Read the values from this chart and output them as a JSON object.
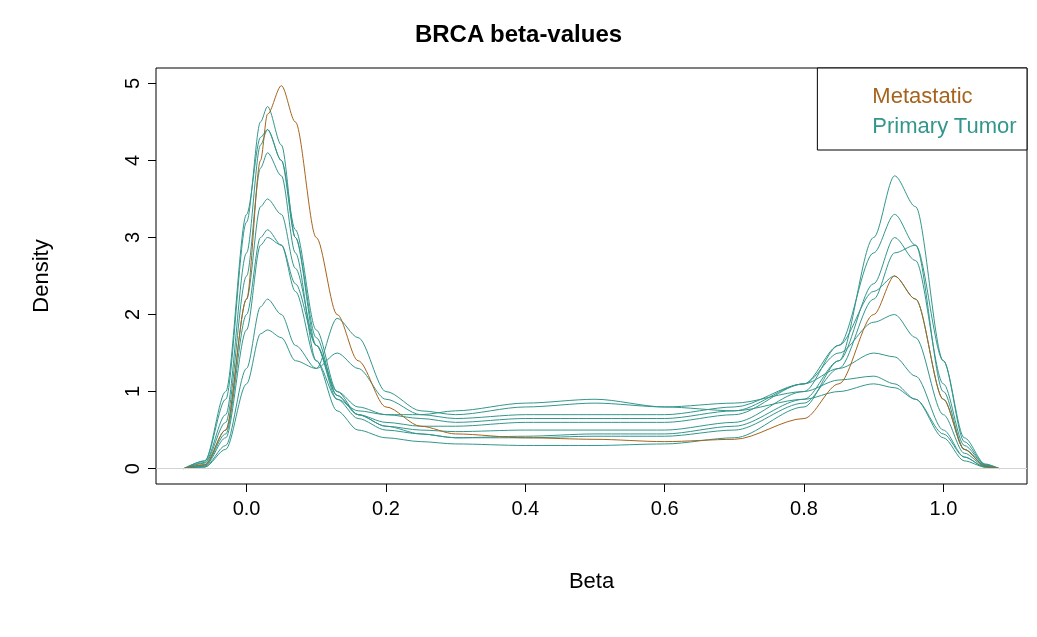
{
  "chart_data": {
    "type": "line",
    "title": "BRCA beta-values",
    "xlabel": "Beta",
    "ylabel": "Density",
    "xlim": [
      -0.13,
      1.12
    ],
    "xticks": [
      {
        "value": 0,
        "label": "0.0"
      },
      0.2,
      0.4,
      0.6,
      0.8,
      {
        "value": 1,
        "label": "1.0"
      }
    ],
    "ylim": [
      -0.2,
      5.2
    ],
    "yticks": [
      0,
      1,
      2,
      3,
      4,
      5
    ],
    "grid": false,
    "legend": "top right",
    "marker": "none",
    "line_style": "solid",
    "ref_lines": [
      {
        "axis": "y",
        "value": 0,
        "color": "#d3d3d3"
      }
    ],
    "x": [
      -0.09,
      -0.06,
      -0.03,
      0,
      0.02,
      0.03,
      0.05,
      0.07,
      0.1,
      0.13,
      0.16,
      0.2,
      0.25,
      0.3,
      0.4,
      0.5,
      0.6,
      0.7,
      0.8,
      0.85,
      0.9,
      0.93,
      0.96,
      1.0,
      1.03,
      1.06,
      1.08
    ],
    "series": [
      {
        "name": "Metastatic",
        "color": "#a5641d",
        "values": [
          0,
          0.05,
          0.5,
          2.2,
          4.0,
          4.6,
          4.97,
          4.5,
          3.0,
          2.0,
          1.4,
          0.8,
          0.55,
          0.45,
          0.4,
          0.38,
          0.35,
          0.38,
          0.65,
          1.1,
          2.0,
          2.5,
          2.2,
          0.9,
          0.25,
          0.03,
          0
        ]
      },
      {
        "name": "Primary Tumor",
        "color": "#33968c",
        "values": [
          0,
          0.1,
          0.9,
          3.2,
          4.5,
          4.7,
          4.2,
          3.0,
          1.6,
          0.9,
          0.65,
          0.5,
          0.45,
          0.4,
          0.42,
          0.45,
          0.45,
          0.55,
          0.9,
          1.4,
          2.4,
          3.0,
          2.7,
          1.1,
          0.3,
          0.05,
          0
        ]
      },
      {
        "color": "#33968c",
        "values": [
          0,
          0.08,
          0.7,
          2.8,
          4.2,
          4.4,
          4.0,
          3.0,
          1.7,
          0.95,
          0.7,
          0.55,
          0.5,
          0.48,
          0.5,
          0.5,
          0.5,
          0.6,
          1.0,
          1.6,
          2.8,
          3.3,
          2.9,
          1.0,
          0.25,
          0.04,
          0
        ]
      },
      {
        "color": "#33968c",
        "values": [
          0,
          0.05,
          0.5,
          2.2,
          3.4,
          3.5,
          3.3,
          2.6,
          1.6,
          0.95,
          0.7,
          0.6,
          0.55,
          0.55,
          0.6,
          0.6,
          0.6,
          0.7,
          1.1,
          1.6,
          2.3,
          2.5,
          2.2,
          0.9,
          0.25,
          0.04,
          0
        ]
      },
      {
        "color": "#33968c",
        "values": [
          0,
          0.03,
          0.4,
          1.8,
          2.9,
          3.0,
          2.9,
          2.4,
          1.6,
          1.0,
          0.8,
          0.7,
          0.65,
          0.6,
          0.65,
          0.65,
          0.65,
          0.75,
          1.1,
          1.5,
          1.9,
          2.0,
          1.7,
          0.7,
          0.2,
          0.03,
          0
        ]
      },
      {
        "color": "#33968c",
        "values": [
          0,
          0.02,
          0.3,
          1.3,
          2.1,
          2.2,
          2.0,
          1.6,
          1.3,
          1.5,
          1.3,
          0.9,
          0.7,
          0.65,
          0.7,
          0.7,
          0.7,
          0.8,
          1.1,
          1.3,
          1.5,
          1.45,
          1.2,
          0.5,
          0.15,
          0.02,
          0
        ]
      },
      {
        "color": "#33968c",
        "values": [
          0,
          0.02,
          0.25,
          1.1,
          1.75,
          1.8,
          1.7,
          1.4,
          1.3,
          1.95,
          1.7,
          1.0,
          0.75,
          0.7,
          0.8,
          0.85,
          0.8,
          0.85,
          1.0,
          1.15,
          1.2,
          1.1,
          0.9,
          0.4,
          0.1,
          0.02,
          0
        ]
      },
      {
        "color": "#33968c",
        "values": [
          0,
          0.07,
          0.6,
          2.5,
          3.9,
          4.1,
          3.8,
          2.8,
          1.4,
          0.75,
          0.5,
          0.4,
          0.35,
          0.32,
          0.3,
          0.3,
          0.32,
          0.4,
          0.8,
          1.4,
          3.0,
          3.8,
          3.4,
          1.4,
          0.35,
          0.05,
          0
        ]
      },
      {
        "color": "#33968c",
        "values": [
          0,
          0.04,
          0.45,
          2.0,
          3.0,
          3.1,
          2.9,
          2.3,
          1.4,
          0.9,
          0.75,
          0.7,
          0.7,
          0.75,
          0.85,
          0.9,
          0.8,
          0.75,
          0.9,
          1.0,
          1.1,
          1.05,
          0.9,
          0.45,
          0.15,
          0.02,
          0
        ]
      },
      {
        "color": "#33968c",
        "values": [
          0,
          0.1,
          1.0,
          3.3,
          4.3,
          4.4,
          4.0,
          3.1,
          1.8,
          1.0,
          0.7,
          0.55,
          0.45,
          0.4,
          0.4,
          0.42,
          0.42,
          0.5,
          0.85,
          1.3,
          2.2,
          2.8,
          2.9,
          1.4,
          0.4,
          0.06,
          0
        ]
      }
    ]
  }
}
